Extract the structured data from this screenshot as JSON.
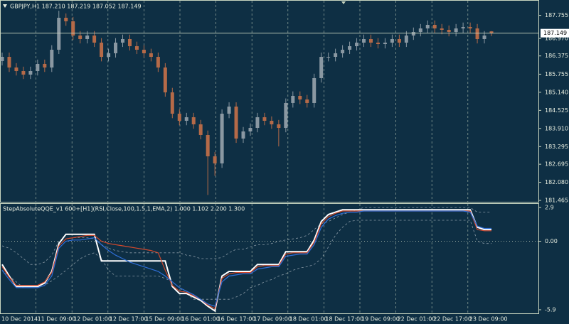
{
  "chart_data": [
    {
      "type": "candlestick",
      "title": "GBPJPY,H1  187.210 187.219 187.052 187.149",
      "xtick_labels": [
        "10 Dec 2014",
        "11 Dec 09:00",
        "12 Dec 01:00",
        "12 Dec 17:00",
        "15 Dec 09:00",
        "16 Dec 01:00",
        "16 Dec 17:00",
        "17 Dec 09:00",
        "18 Dec 01:00",
        "18 Dec 17:00",
        "19 Dec 09:00",
        "22 Dec 01:00",
        "22 Dec 17:00",
        "23 Dec 09:00"
      ],
      "ylim": [
        181.418,
        188.276
      ],
      "yticks": [
        187.755,
        {
          "value": 186.97,
          "label": "186.970"
        },
        186.375,
        185.755,
        {
          "value": 185.14,
          "label": "185.140"
        },
        184.525,
        {
          "value": 183.91,
          "label": "183.910"
        },
        183.295,
        182.695,
        {
          "value": 182.08,
          "label": "182.080"
        },
        181.465
      ],
      "current_price": {
        "value": 187.149,
        "label": "187.149"
      },
      "grid": true,
      "up_color": "#8a98a2",
      "down_color": "#b56a48",
      "open": [
        186.2,
        186.344,
        185.982,
        185.861,
        185.74,
        185.861,
        186.103,
        185.982,
        186.586,
        187.672,
        187.552,
        187.069,
        186.948,
        187.069,
        186.827,
        186.344,
        186.465,
        186.827,
        186.948,
        186.706,
        186.586,
        186.465,
        186.344,
        185.982,
        185.137,
        184.412,
        184.171,
        184.292,
        184.05,
        183.688,
        182.963,
        182.722,
        184.412,
        184.654,
        183.567,
        183.809,
        183.929,
        184.292,
        184.171,
        184.05,
        183.929,
        184.775,
        185.016,
        184.895,
        184.775,
        185.62,
        186.344,
        186.344,
        186.465,
        186.586,
        186.706,
        186.827,
        186.948,
        186.827,
        186.779,
        186.827,
        186.948,
        186.827,
        187.069,
        187.189,
        187.31,
        187.431,
        187.31,
        187.262,
        187.189,
        187.31,
        187.358,
        187.31,
        186.948,
        187.21
      ],
      "high": [
        186.49,
        186.49,
        186.13,
        186.01,
        186.01,
        186.25,
        186.25,
        186.74,
        187.91,
        187.82,
        187.7,
        187.22,
        187.22,
        187.22,
        186.98,
        186.62,
        186.98,
        187.1,
        187.1,
        186.86,
        186.74,
        186.62,
        186.49,
        186.13,
        185.29,
        184.56,
        184.44,
        184.44,
        184.2,
        183.84,
        183.11,
        184.56,
        184.8,
        184.8,
        183.96,
        184.08,
        184.44,
        184.44,
        184.32,
        184.2,
        184.93,
        185.17,
        185.17,
        185.05,
        185.77,
        186.49,
        186.49,
        186.62,
        186.74,
        186.86,
        186.98,
        187.1,
        187.1,
        186.98,
        186.98,
        187.1,
        187.1,
        187.22,
        187.34,
        187.46,
        187.58,
        187.58,
        187.46,
        187.41,
        187.46,
        187.51,
        187.51,
        187.46,
        187.22,
        187.219
      ],
      "low": [
        186.05,
        185.83,
        185.71,
        185.59,
        185.59,
        185.71,
        185.83,
        185.83,
        186.44,
        187.4,
        186.92,
        186.8,
        186.8,
        186.68,
        186.19,
        186.19,
        186.32,
        186.68,
        186.56,
        186.44,
        186.32,
        186.19,
        185.83,
        184.99,
        184.26,
        184.02,
        184.02,
        183.9,
        183.54,
        181.65,
        182.3,
        182.57,
        184.26,
        183.42,
        183.42,
        183.66,
        183.78,
        184.02,
        183.9,
        183.3,
        183.78,
        184.62,
        184.74,
        184.62,
        184.62,
        185.47,
        186.19,
        186.19,
        186.32,
        186.44,
        186.56,
        186.68,
        186.68,
        186.63,
        186.63,
        186.68,
        186.68,
        186.68,
        186.92,
        187.04,
        187.16,
        187.16,
        187.11,
        187.04,
        187.04,
        187.16,
        187.16,
        186.8,
        186.8,
        187.052
      ],
      "close": [
        186.344,
        185.982,
        185.861,
        185.74,
        185.861,
        186.103,
        185.982,
        186.586,
        187.672,
        187.552,
        187.069,
        186.948,
        187.069,
        186.827,
        186.344,
        186.465,
        186.827,
        186.948,
        186.706,
        186.586,
        186.465,
        186.344,
        185.982,
        185.137,
        184.412,
        184.171,
        184.292,
        184.05,
        183.688,
        182.963,
        182.722,
        184.412,
        184.654,
        183.567,
        183.809,
        183.929,
        184.292,
        184.171,
        184.05,
        183.929,
        184.775,
        185.016,
        184.895,
        184.775,
        185.62,
        186.344,
        186.344,
        186.465,
        186.586,
        186.706,
        186.827,
        186.948,
        186.827,
        186.779,
        186.827,
        186.948,
        186.827,
        187.069,
        187.189,
        187.31,
        187.431,
        187.31,
        187.262,
        187.189,
        187.31,
        187.358,
        187.31,
        186.948,
        187.069,
        187.149
      ]
    },
    {
      "type": "line",
      "title": "StepAbsoluteQQE_v1 600+[H1](RSI,Close,100,1.5,1,EMA,2) 1.000 1.102 2.200 1.300",
      "ylim": [
        -6.27,
        3.27
      ],
      "yticks": [
        2.9,
        {
          "value": 0,
          "label": "0.00"
        },
        -5.9
      ],
      "zero_line": true,
      "series": [
        {
          "color": "#8a9aa6",
          "dashed": true,
          "values": [
            -0.4,
            -0.6,
            -1.0,
            -1.5,
            -2.0,
            -2.0,
            -1.8,
            -1.2,
            0.0,
            0.2,
            0.3,
            0.3,
            0.3,
            0.2,
            -0.3,
            -0.6,
            -0.8,
            -0.9,
            -1.0,
            -1.0,
            -1.0,
            -1.0,
            -1.0,
            -1.0,
            -1.0,
            -1.0,
            -1.2,
            -1.3,
            -1.5,
            -1.5,
            -1.5,
            -1.4,
            -1.0,
            -0.7,
            -0.7,
            -0.5,
            -0.3,
            -0.3,
            -0.2,
            0.0,
            0.1,
            0.2,
            0.3,
            0.5,
            1.0,
            1.5,
            1.7,
            2.0,
            2.3,
            2.5,
            2.7,
            2.9,
            2.9,
            2.9,
            2.9,
            2.9,
            2.9,
            2.9,
            2.9,
            2.9,
            2.9,
            2.9,
            2.9,
            2.9,
            2.9,
            2.9,
            2.9,
            2.5,
            2.5,
            2.5
          ]
        },
        {
          "color": "#8a9aa6",
          "dashed": true,
          "values": [
            -2.5,
            -3.0,
            -3.5,
            -4.0,
            -4.0,
            -4.0,
            -3.8,
            -3.4,
            -3.0,
            -2.5,
            -2.0,
            -1.5,
            -1.2,
            -1.0,
            -1.5,
            -2.5,
            -3.0,
            -3.0,
            -3.0,
            -3.0,
            -3.0,
            -3.0,
            -3.0,
            -3.2,
            -3.5,
            -4.0,
            -4.5,
            -5.0,
            -5.0,
            -5.0,
            -5.0,
            -5.0,
            -5.0,
            -4.8,
            -4.5,
            -4.0,
            -3.8,
            -3.5,
            -3.3,
            -3.0,
            -2.8,
            -2.5,
            -2.3,
            -2.2,
            -2.0,
            -1.5,
            -0.5,
            0.5,
            1.2,
            1.7,
            1.8,
            1.8,
            1.8,
            1.8,
            1.8,
            1.8,
            1.8,
            1.8,
            1.8,
            1.8,
            1.8,
            1.8,
            1.8,
            1.8,
            1.8,
            1.8,
            1.8,
            0.0,
            -0.2,
            -0.2
          ]
        },
        {
          "color": "#ffffff",
          "dashed": false,
          "values": [
            -2.0,
            -3.0,
            -3.9,
            -3.9,
            -3.9,
            -3.9,
            -3.6,
            -2.6,
            -0.2,
            0.6,
            0.6,
            0.6,
            0.6,
            0.6,
            -1.7,
            -1.7,
            -1.7,
            -1.7,
            -1.7,
            -1.7,
            -1.7,
            -1.7,
            -1.7,
            -1.7,
            -3.9,
            -4.5,
            -4.5,
            -4.8,
            -5.1,
            -5.6,
            -6.0,
            -3.0,
            -2.6,
            -2.6,
            -2.6,
            -2.6,
            -2.0,
            -2.0,
            -2.0,
            -2.0,
            -0.9,
            -0.9,
            -0.9,
            -0.9,
            0.1,
            1.7,
            2.3,
            2.5,
            2.7,
            2.7,
            2.7,
            2.7,
            2.7,
            2.7,
            2.7,
            2.7,
            2.7,
            2.7,
            2.7,
            2.7,
            2.7,
            2.7,
            2.7,
            2.7,
            2.7,
            2.7,
            2.7,
            1.2,
            1.0,
            1.0
          ]
        },
        {
          "color": "#d2482c",
          "dashed": false,
          "values": [
            -2.2,
            -3.1,
            -3.8,
            -3.8,
            -3.8,
            -3.8,
            -3.5,
            -2.7,
            -0.4,
            0.2,
            0.3,
            0.4,
            0.5,
            0.5,
            0.0,
            -0.2,
            -0.3,
            -0.4,
            -0.5,
            -0.6,
            -0.7,
            -0.8,
            -1.0,
            -2.5,
            -3.8,
            -4.3,
            -4.4,
            -4.7,
            -5.0,
            -5.5,
            -5.8,
            -3.2,
            -2.8,
            -2.7,
            -2.7,
            -2.7,
            -2.2,
            -2.1,
            -2.1,
            -2.1,
            -1.1,
            -1.0,
            -1.0,
            -1.0,
            -0.1,
            1.5,
            2.1,
            2.4,
            2.6,
            2.6,
            2.6,
            2.6,
            2.6,
            2.6,
            2.6,
            2.6,
            2.6,
            2.6,
            2.6,
            2.6,
            2.6,
            2.6,
            2.6,
            2.6,
            2.6,
            2.6,
            2.6,
            1.0,
            0.9,
            0.9
          ]
        },
        {
          "color": "#2f6fd8",
          "dashed": false,
          "values": [
            -2.5,
            -3.3,
            -4.0,
            -4.0,
            -4.0,
            -4.0,
            -3.8,
            -3.0,
            -0.6,
            0.0,
            0.1,
            0.1,
            0.2,
            0.3,
            -0.3,
            -0.8,
            -1.2,
            -1.5,
            -1.8,
            -2.0,
            -2.2,
            -2.4,
            -2.6,
            -3.0,
            -3.5,
            -4.0,
            -4.3,
            -4.6,
            -5.0,
            -5.4,
            -5.6,
            -3.5,
            -3.0,
            -2.9,
            -2.8,
            -2.8,
            -2.4,
            -2.3,
            -2.2,
            -2.2,
            -1.3,
            -1.2,
            -1.1,
            -1.1,
            -0.3,
            1.2,
            1.9,
            2.2,
            2.4,
            2.5,
            2.5,
            2.6,
            2.6,
            2.6,
            2.6,
            2.6,
            2.6,
            2.6,
            2.6,
            2.6,
            2.6,
            2.6,
            2.6,
            2.6,
            2.6,
            2.6,
            2.5,
            1.3,
            1.1,
            1.1
          ]
        }
      ]
    }
  ]
}
